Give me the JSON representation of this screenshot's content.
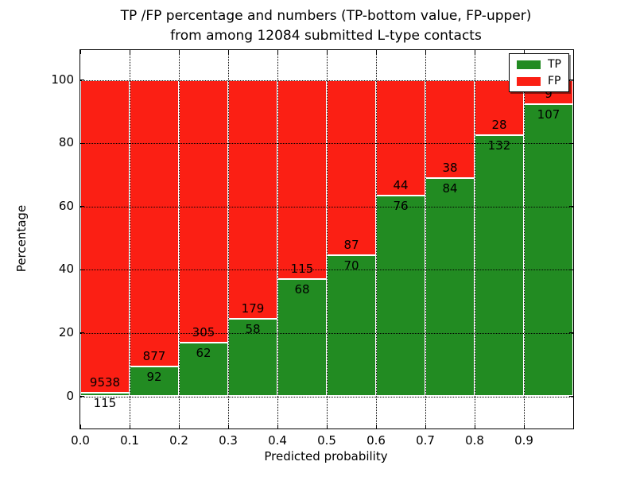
{
  "title": {
    "line1": "TP /FP percentage and numbers (TP-bottom value, FP-upper)",
    "line2": "from among 12084 submitted L-type contacts"
  },
  "axes": {
    "xlabel": "Predicted probability",
    "ylabel": "Percentage",
    "xtick_labels": [
      "0.0",
      "0.1",
      "0.2",
      "0.3",
      "0.4",
      "0.5",
      "0.6",
      "0.7",
      "0.8",
      "0.9"
    ],
    "yticks": [
      0,
      20,
      40,
      60,
      80,
      100
    ]
  },
  "legend": {
    "items": [
      {
        "label": "TP",
        "color": "#228b22"
      },
      {
        "label": "FP",
        "color": "#fb1f14"
      }
    ]
  },
  "colors": {
    "tp": "#228b22",
    "fp": "#fb1f14",
    "bar_edge": "#ffffff",
    "grid": "#000000",
    "background": "#ffffff"
  },
  "chart_data": {
    "type": "bar",
    "stacked": true,
    "normalized": "percent-per-bin",
    "title": "TP /FP percentage and numbers (TP-bottom value, FP-upper) from among 12084 submitted L-type contacts",
    "xlabel": "Predicted probability",
    "ylabel": "Percentage",
    "total_submitted_contacts": 12084,
    "bin_width": 0.1,
    "x_bins": [
      "0.0-0.1",
      "0.1-0.2",
      "0.2-0.3",
      "0.3-0.4",
      "0.4-0.5",
      "0.5-0.6",
      "0.6-0.7",
      "0.7-0.8",
      "0.8-0.9",
      "0.9-1.0"
    ],
    "series": [
      {
        "name": "TP",
        "color": "#228b22",
        "counts": [
          115,
          92,
          62,
          58,
          68,
          70,
          76,
          84,
          132,
          107
        ]
      },
      {
        "name": "FP",
        "color": "#fb1f14",
        "counts": [
          9538,
          877,
          305,
          179,
          115,
          87,
          44,
          38,
          28,
          9
        ]
      }
    ],
    "tp_percent_per_bin": [
      1.19,
      9.49,
      16.89,
      24.47,
      37.16,
      44.59,
      63.33,
      68.85,
      82.5,
      92.24
    ],
    "ylim": [
      0,
      100
    ],
    "grid": true,
    "legend_position": "upper-right"
  }
}
